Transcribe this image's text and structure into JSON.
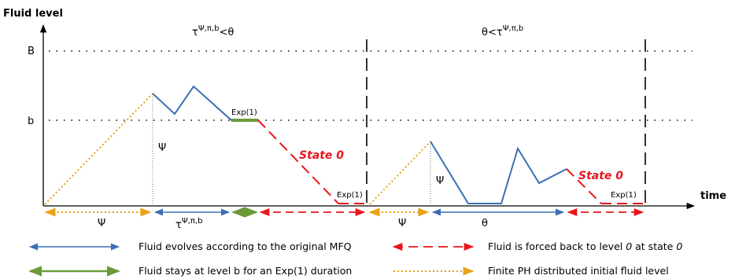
{
  "axes": {
    "y_title": "Fluid level",
    "x_title": "time",
    "y_tick_B": "B",
    "y_tick_b": "b"
  },
  "cases": {
    "left": {
      "prefix": "τ",
      "superscript": "Ψ,π,b",
      "suffix": "<θ"
    },
    "right": {
      "prefix": "θ<τ",
      "superscript": "Ψ,π,b",
      "suffix": ""
    }
  },
  "annotations": {
    "psi_mid": "Ψ",
    "psi_right": "Ψ",
    "exp_top": "Exp(1)",
    "exp_bottom_left": "Exp(1)",
    "exp_bottom_right": "Exp(1)",
    "state0_left": "State 0",
    "state0_right": "State 0"
  },
  "intervals": {
    "psi_left": "Ψ",
    "tau": {
      "prefix": "τ",
      "superscript": "Ψ,π,b"
    },
    "psi_right": "Ψ",
    "theta": "θ"
  },
  "legend": {
    "blue": "Fluid evolves according to the original MFQ",
    "green": "Fluid stays at level b for an Exp(1) duration",
    "red_prefix": "Fluid is forced back to level ",
    "red_zero": "0",
    "red_mid": " at state ",
    "red_state": "0",
    "orange": "Finite PH distributed initial fluid level"
  },
  "colors": {
    "blue": "#3a6fb5",
    "green": "#6a9a3a",
    "red": "#e8151b",
    "orange": "#e8a317",
    "black": "#000000"
  }
}
